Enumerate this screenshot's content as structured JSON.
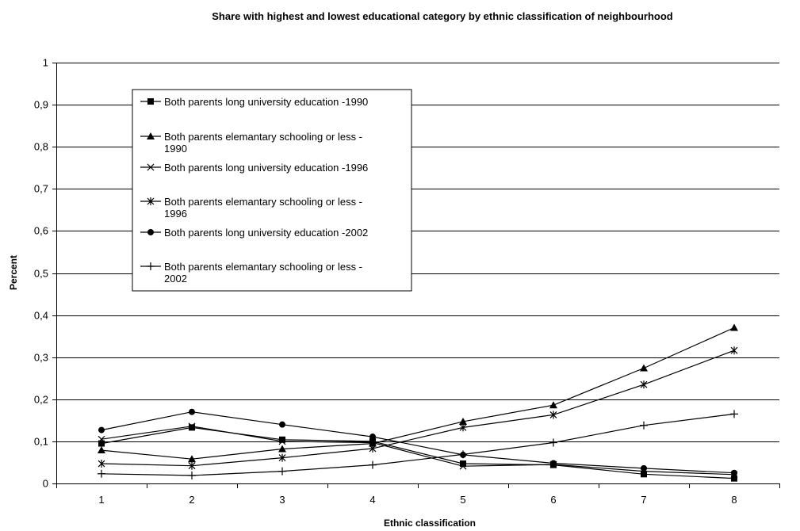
{
  "chart_data": {
    "type": "line",
    "title": "Share with highest and lowest educational category by ethnic classification of neighbourhood",
    "xlabel": "Ethnic classification",
    "ylabel": "Percent",
    "categories": [
      "1",
      "2",
      "3",
      "4",
      "5",
      "6",
      "7",
      "8"
    ],
    "ylim": [
      0,
      1
    ],
    "yticks": [
      "0",
      "0,1",
      "0,2",
      "0,3",
      "0,4",
      "0,5",
      "0,6",
      "0,7",
      "0,8",
      "0,9",
      "1"
    ],
    "ytick_values": [
      0,
      0.1,
      0.2,
      0.3,
      0.4,
      0.5,
      0.6,
      0.7,
      0.8,
      0.9,
      1.0
    ],
    "grid": "horizontal",
    "legend_position": "upper-left inside plot",
    "series": [
      {
        "name": "Both parents long university education -1990",
        "marker": "square",
        "values": [
          0.095,
          0.133,
          0.104,
          0.1,
          0.047,
          0.044,
          0.022,
          0.012
        ]
      },
      {
        "name": "Both parents elemantary schooling or less - 1990",
        "marker": "triangle",
        "values": [
          0.079,
          0.058,
          0.082,
          0.095,
          0.147,
          0.186,
          0.274,
          0.37
        ]
      },
      {
        "name": "Both parents long university education -1996",
        "marker": "x",
        "values": [
          0.105,
          0.136,
          0.1,
          0.097,
          0.041,
          0.045,
          0.029,
          0.021
        ]
      },
      {
        "name": "Both parents elemantary schooling or less - 1996",
        "marker": "asterisk",
        "values": [
          0.047,
          0.042,
          0.061,
          0.083,
          0.133,
          0.163,
          0.235,
          0.316
        ]
      },
      {
        "name": "Both parents long university education -2002",
        "marker": "circle",
        "values": [
          0.127,
          0.17,
          0.14,
          0.111,
          0.068,
          0.048,
          0.036,
          0.025
        ]
      },
      {
        "name": "Both parents elemantary schooling or less - 2002",
        "marker": "plus",
        "values": [
          0.023,
          0.019,
          0.029,
          0.044,
          0.069,
          0.097,
          0.138,
          0.165
        ]
      }
    ]
  },
  "legend": {
    "items": [
      {
        "line1": "Both parents long university education -1990",
        "line2": ""
      },
      {
        "line1": "Both parents elemantary schooling or less -",
        "line2": "1990"
      },
      {
        "line1": "Both parents long university education -1996",
        "line2": ""
      },
      {
        "line1": "Both parents elemantary schooling or less -",
        "line2": "1996"
      },
      {
        "line1": "Both parents long university education -2002",
        "line2": ""
      },
      {
        "line1": "Both parents elemantary schooling or less -",
        "line2": "2002"
      }
    ]
  },
  "colors": {
    "line": "#000000",
    "grid": "#000000",
    "background": "#ffffff"
  }
}
